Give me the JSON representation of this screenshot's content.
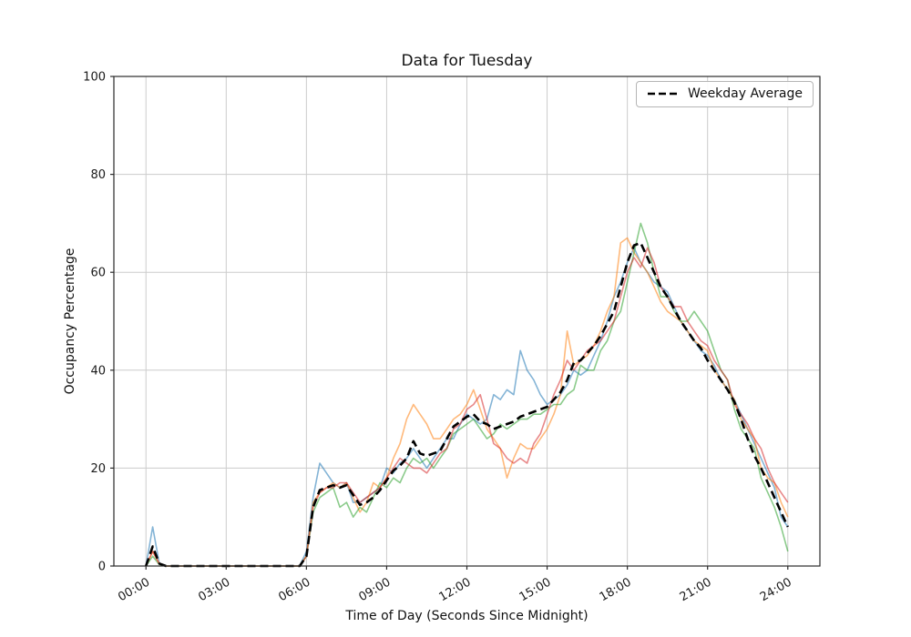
{
  "figure": {
    "title": "Data for Tuesday",
    "xlabel": "Time of Day (Seconds Since Midnight)",
    "ylabel": "Occupancy Percentage",
    "background": "#ffffff"
  },
  "legend": {
    "entries": [
      {
        "label": "Weekday Average",
        "line_style": "dashed",
        "color": "#000000"
      }
    ]
  },
  "chart_data": {
    "type": "line",
    "title": "Data for Tuesday",
    "xlabel": "Time of Day (Seconds Since Midnight)",
    "ylabel": "Occupancy Percentage",
    "grid": true,
    "legend_position": "upper right",
    "xlim": [
      -4320,
      90720
    ],
    "ylim": [
      0,
      100
    ],
    "x_ticks": {
      "positions": [
        0,
        10800,
        21600,
        32400,
        43200,
        54000,
        64800,
        75600,
        86400
      ],
      "labels": [
        "00:00",
        "03:00",
        "06:00",
        "09:00",
        "12:00",
        "15:00",
        "18:00",
        "21:00",
        "24:00"
      ]
    },
    "y_ticks": [
      0,
      20,
      40,
      60,
      80,
      100
    ],
    "colors": {
      "grid": "#cccccc",
      "frame": "#2a2a2a",
      "tick_text": "#1a1a1a"
    },
    "x": [
      0,
      900,
      1800,
      2700,
      3600,
      4500,
      5400,
      6300,
      7200,
      8100,
      9000,
      9900,
      10800,
      11700,
      12600,
      13500,
      14400,
      15300,
      16200,
      17100,
      18000,
      18900,
      19800,
      20700,
      21600,
      22500,
      23400,
      24300,
      25200,
      26100,
      27000,
      27900,
      28800,
      29700,
      30600,
      31500,
      32400,
      33300,
      34200,
      35100,
      36000,
      36900,
      37800,
      38700,
      39600,
      40500,
      41400,
      42300,
      43200,
      44100,
      45000,
      45900,
      46800,
      47700,
      48600,
      49500,
      50400,
      51300,
      52200,
      53100,
      54000,
      54900,
      55800,
      56700,
      57600,
      58500,
      59400,
      60300,
      61200,
      62100,
      63000,
      63900,
      64800,
      65700,
      66600,
      67500,
      68400,
      69300,
      70200,
      71100,
      72000,
      72900,
      73800,
      74700,
      75600,
      76500,
      77400,
      78300,
      79200,
      80100,
      81000,
      81900,
      82800,
      83700,
      84600,
      85500,
      86400
    ],
    "series": [
      {
        "name": "blue",
        "color": "#1f77b4",
        "opacity": 0.55,
        "values": [
          0,
          8,
          0.5,
          0,
          0,
          0,
          0,
          0,
          0,
          0,
          0,
          0,
          0,
          0,
          0,
          0,
          0,
          0,
          0,
          0,
          0,
          0,
          0,
          0,
          3,
          14,
          21,
          19,
          17,
          16,
          17,
          13,
          13,
          14,
          15,
          16,
          20,
          19,
          21,
          22,
          24,
          22,
          20,
          22,
          24,
          26,
          26,
          29,
          31,
          30,
          29,
          30,
          35,
          34,
          36,
          35,
          44,
          40,
          38,
          35,
          33,
          34,
          35,
          37,
          40,
          39,
          40,
          43,
          46,
          50,
          55,
          58,
          62,
          65,
          62,
          60,
          58,
          57,
          56,
          53,
          50,
          48,
          46,
          44,
          43,
          41,
          38,
          36,
          34,
          31,
          28,
          25,
          22,
          19,
          16,
          10,
          8
        ]
      },
      {
        "name": "orange",
        "color": "#ff7f0e",
        "opacity": 0.55,
        "values": [
          0,
          3,
          0.5,
          0,
          0,
          0,
          0,
          0,
          0,
          0,
          0,
          0,
          0,
          0,
          0,
          0,
          0,
          0,
          0,
          0,
          0,
          0,
          0,
          0,
          2,
          13,
          15,
          16,
          17,
          16,
          17,
          14,
          11,
          13,
          17,
          16,
          18,
          22,
          25,
          30,
          33,
          31,
          29,
          26,
          26,
          28,
          30,
          31,
          33,
          36,
          32,
          28,
          26,
          24,
          18,
          22,
          25,
          24,
          24,
          26,
          28,
          31,
          35,
          48,
          41,
          42,
          43,
          45,
          48,
          52,
          55,
          66,
          67,
          64,
          62,
          60,
          57,
          54,
          52,
          51,
          50,
          48,
          46,
          45,
          44,
          40,
          38,
          36,
          34,
          30,
          28,
          26,
          20,
          18,
          17,
          13,
          10
        ]
      },
      {
        "name": "green",
        "color": "#2ca02c",
        "opacity": 0.55,
        "values": [
          0,
          2,
          0.3,
          0,
          0,
          0,
          0,
          0,
          0,
          0,
          0,
          0,
          0,
          0,
          0,
          0,
          0,
          0,
          0,
          0,
          0,
          0,
          0,
          0,
          2,
          11,
          14,
          15,
          16,
          12,
          13,
          10,
          12,
          11,
          14,
          17,
          16,
          18,
          17,
          20,
          22,
          21,
          22,
          20,
          22,
          24,
          27,
          28,
          29,
          30,
          28,
          26,
          27,
          29,
          28,
          29,
          30,
          30,
          31,
          31,
          32,
          33,
          33,
          35,
          36,
          41,
          40,
          40,
          44,
          46,
          50,
          52,
          58,
          64,
          70,
          66,
          60,
          55,
          55,
          52,
          50,
          50,
          52,
          50,
          48,
          44,
          40,
          38,
          32,
          28,
          26,
          24,
          18,
          15,
          12,
          8,
          3
        ]
      },
      {
        "name": "red",
        "color": "#d62728",
        "opacity": 0.55,
        "values": [
          0,
          3,
          0.4,
          0,
          0,
          0,
          0,
          0,
          0,
          0,
          0,
          0,
          0,
          0,
          0,
          0,
          0,
          0,
          0,
          0,
          0,
          0,
          0,
          0,
          2,
          12,
          15,
          16,
          16,
          17,
          17,
          15,
          13,
          14,
          15,
          16,
          18,
          20,
          22,
          21,
          20,
          20,
          19,
          21,
          23,
          24,
          28,
          29,
          32,
          33,
          35,
          30,
          25,
          24,
          22,
          21,
          22,
          21,
          25,
          27,
          31,
          35,
          38,
          42,
          40,
          42,
          44,
          45,
          46,
          48,
          50,
          55,
          60,
          63,
          61,
          65,
          62,
          57,
          55,
          53,
          53,
          50,
          48,
          46,
          45,
          42,
          40,
          38,
          33,
          31,
          29,
          26,
          24,
          20,
          17,
          15,
          13
        ]
      }
    ],
    "average": {
      "name": "Weekday Average",
      "color": "#000000",
      "dash": true,
      "values": [
        0,
        4,
        0.5,
        0,
        0,
        0,
        0,
        0,
        0,
        0,
        0,
        0,
        0,
        0,
        0,
        0,
        0,
        0,
        0,
        0,
        0,
        0,
        0,
        0,
        2,
        12,
        15.5,
        16,
        16.5,
        16,
        16.5,
        14.5,
        12.5,
        13,
        14,
        15.5,
        17.5,
        19.5,
        20.5,
        22,
        25.5,
        23,
        22.5,
        23,
        23.5,
        26,
        28.5,
        29.5,
        30.5,
        31,
        29.5,
        29,
        28,
        28.5,
        29,
        29.5,
        30.5,
        31,
        31.5,
        32,
        32.5,
        34,
        35.5,
        38,
        41.5,
        42,
        43.5,
        45,
        47,
        49.5,
        52,
        57,
        62,
        65.5,
        66,
        63,
        60,
        57,
        55,
        52.5,
        50,
        48,
        46,
        44.5,
        42,
        40,
        38,
        36,
        33.5,
        30,
        26,
        22.5,
        20,
        17,
        14,
        11,
        8
      ]
    }
  }
}
